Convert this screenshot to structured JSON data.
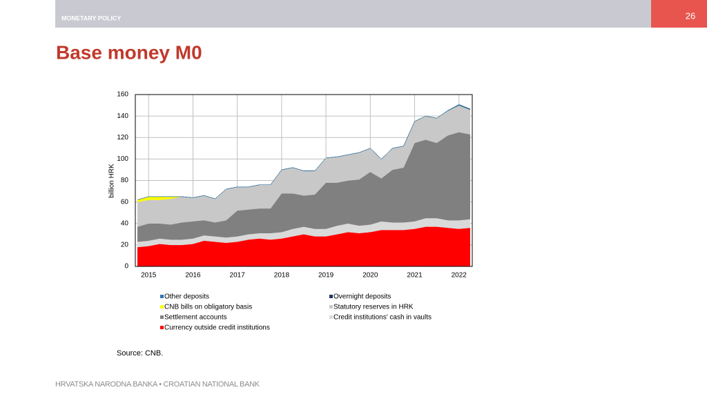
{
  "header": {
    "section": "MONETARY POLICY",
    "page_number": "26"
  },
  "title": "Base money M0",
  "chart_data": {
    "type": "area",
    "stacked": true,
    "y_label": "billion HRK",
    "x": [
      2014.75,
      2015.0,
      2015.25,
      2015.5,
      2015.75,
      2016.0,
      2016.25,
      2016.5,
      2016.75,
      2017.0,
      2017.25,
      2017.5,
      2017.75,
      2018.0,
      2018.25,
      2018.5,
      2018.75,
      2019.0,
      2019.25,
      2019.5,
      2019.75,
      2020.0,
      2020.25,
      2020.5,
      2020.75,
      2021.0,
      2021.25,
      2021.5,
      2021.75,
      2022.0,
      2022.25
    ],
    "xlim": [
      2014.7,
      2022.3
    ],
    "xticks": [
      2015,
      2016,
      2017,
      2018,
      2019,
      2020,
      2021,
      2022
    ],
    "ylim": [
      0,
      160
    ],
    "yticks": [
      0,
      20,
      40,
      60,
      80,
      100,
      120,
      140,
      160
    ],
    "grid": true,
    "series": [
      {
        "name": "Other deposits",
        "color": "#2e75b6",
        "values": [
          0,
          0,
          0,
          0,
          0,
          0,
          0,
          0,
          0,
          0,
          0,
          0,
          0,
          0,
          0,
          0,
          0,
          0,
          0,
          0,
          0,
          0,
          0,
          0,
          0,
          0,
          0,
          0,
          0.3,
          0.5,
          0.5
        ]
      },
      {
        "name": "Overnight deposits",
        "color": "#1f3864",
        "values": [
          0,
          0,
          0,
          0,
          0,
          0,
          0,
          0,
          0,
          0,
          0,
          0,
          0,
          0,
          0,
          0,
          0,
          0,
          0,
          0,
          0,
          0,
          0,
          0,
          0,
          0,
          0,
          0,
          0,
          0.3,
          0.3
        ]
      },
      {
        "name": "CNB bills on obligatory basis",
        "color": "#ffff00",
        "values": [
          2,
          3,
          3,
          2,
          0,
          0,
          0,
          0,
          0,
          0,
          0,
          0,
          0,
          0,
          0,
          0,
          0,
          0,
          0,
          0,
          0,
          0,
          0,
          0,
          0,
          0,
          0,
          0,
          0,
          0,
          0
        ]
      },
      {
        "name": "Statutory reserves in HRK",
        "color": "#c8c8c8",
        "values": [
          23,
          22,
          22,
          24,
          24,
          22,
          23,
          22,
          29,
          22,
          21,
          22,
          22,
          22,
          24,
          23,
          22,
          23,
          24,
          24,
          25,
          22,
          18,
          20,
          20,
          20,
          22,
          23,
          23,
          25,
          23
        ]
      },
      {
        "name": "Settlement accounts",
        "color": "#808080",
        "values": [
          14,
          16,
          14,
          14,
          16,
          16,
          14,
          13,
          16,
          24,
          23,
          23,
          23,
          36,
          33,
          29,
          32,
          43,
          40,
          40,
          43,
          49,
          40,
          49,
          51,
          73,
          73,
          70,
          79,
          82,
          79
        ]
      },
      {
        "name": "Credit institutions' cash in vaults",
        "color": "#dadada",
        "values": [
          5,
          5,
          5,
          5,
          5,
          5,
          5,
          5,
          5,
          5,
          5,
          5,
          6,
          6,
          7,
          7,
          7,
          7,
          8,
          8,
          7,
          7,
          8,
          7,
          7,
          7,
          8,
          8,
          7,
          8,
          8
        ]
      },
      {
        "name": "Currency outside credit institutions",
        "color": "#ff0000",
        "values": [
          18,
          19,
          21,
          20,
          20,
          21,
          24,
          23,
          22,
          23,
          25,
          26,
          25,
          26,
          28,
          30,
          28,
          28,
          30,
          32,
          31,
          32,
          34,
          34,
          34,
          35,
          37,
          37,
          36,
          35,
          36
        ]
      }
    ]
  },
  "source": "Source: CNB.",
  "footer": "HRVATSKA NARODNA BANKA • CROATIAN NATIONAL BANK"
}
